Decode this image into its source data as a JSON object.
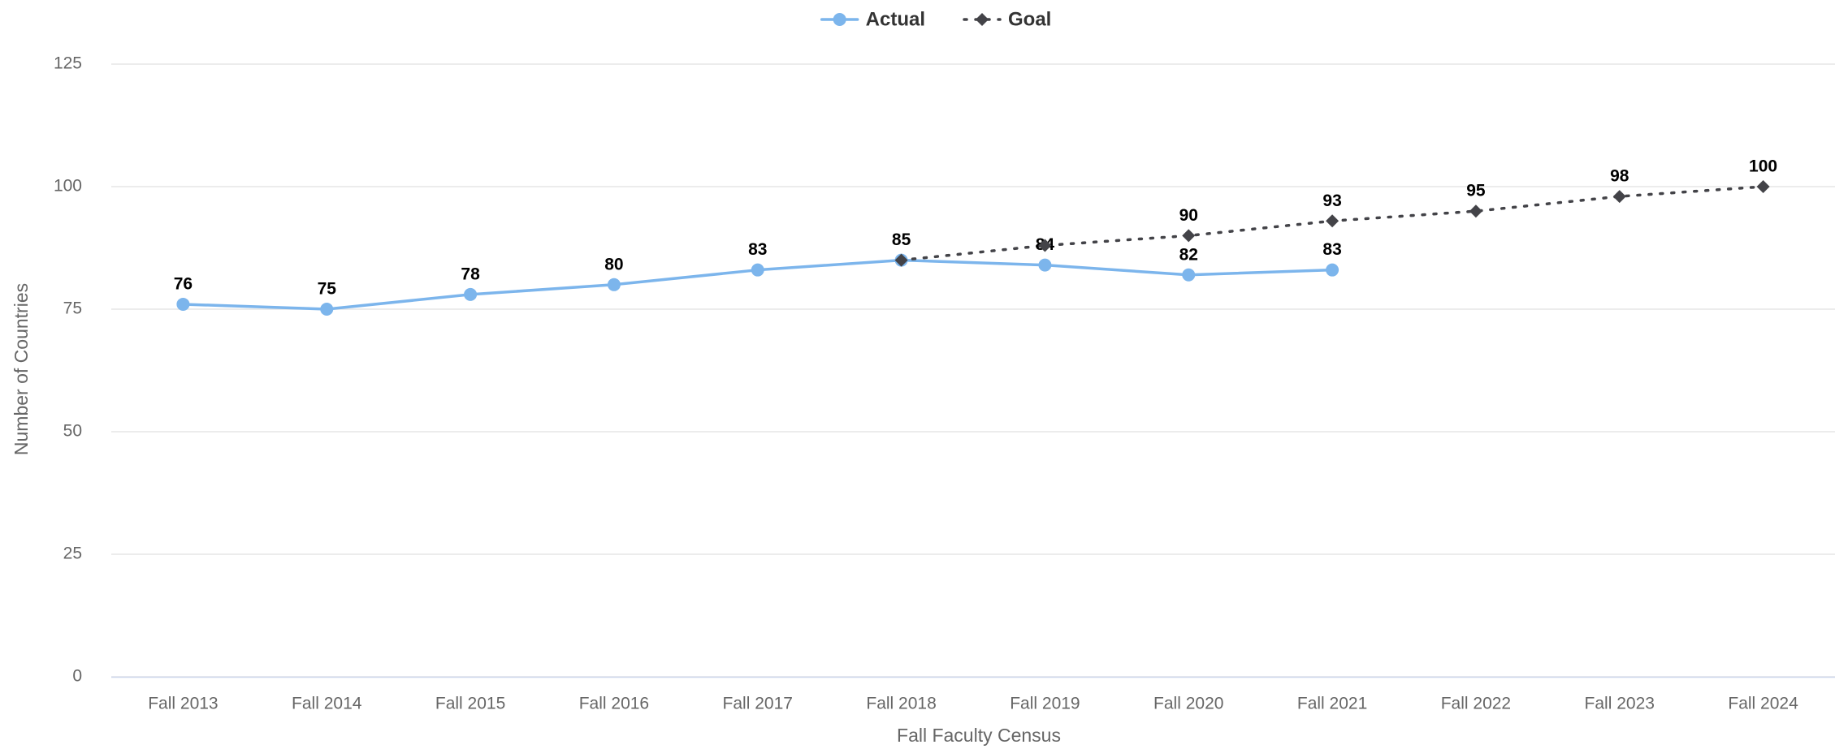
{
  "chart_data": {
    "type": "line",
    "categories": [
      "Fall 2013",
      "Fall 2014",
      "Fall 2015",
      "Fall 2016",
      "Fall 2017",
      "Fall 2018",
      "Fall 2019",
      "Fall 2020",
      "Fall 2021",
      "Fall 2022",
      "Fall 2023",
      "Fall 2024"
    ],
    "series": [
      {
        "name": "Actual",
        "color": "#7cb5ec",
        "dash": "solid",
        "marker": "circle",
        "values": [
          76,
          75,
          78,
          80,
          83,
          85,
          84,
          82,
          83,
          null,
          null,
          null
        ]
      },
      {
        "name": "Goal",
        "color": "#434348",
        "dash": "dotted",
        "marker": "diamond",
        "values": [
          null,
          null,
          null,
          null,
          null,
          85,
          88,
          90,
          93,
          95,
          98,
          100
        ],
        "value_labels": [
          null,
          null,
          null,
          null,
          null,
          null,
          null,
          "90",
          "93",
          "95",
          "98",
          "100"
        ]
      }
    ],
    "x_label": "Fall Faculty Census",
    "y_label": "Number of Countries",
    "ylim": [
      0,
      125
    ],
    "yticks": [
      0,
      25,
      50,
      75,
      100,
      125
    ],
    "grid": true,
    "legend": "top"
  }
}
